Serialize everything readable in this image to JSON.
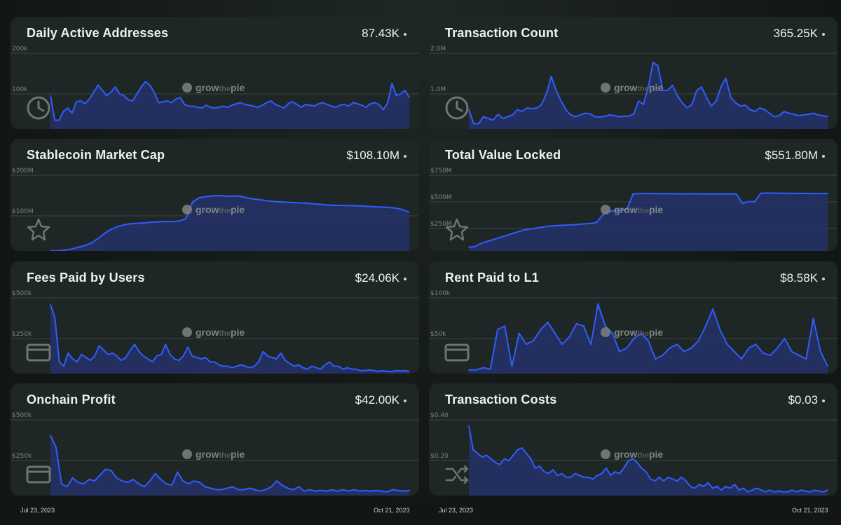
{
  "watermark": {
    "a": "grow",
    "b": "the",
    "c": "pie"
  },
  "dates": {
    "left_start": "Jul 23, 2023",
    "left_end": "Oct 21, 2023",
    "right_start": "Jul 23, 2023",
    "right_end": "Oct 21, 2023"
  },
  "line_color": "#2f5cff",
  "chart_data": [
    {
      "id": "daa",
      "type": "area",
      "title": "Daily Active Addresses",
      "value": "87.43K",
      "icon": "clock-icon",
      "yticks": [
        "200k",
        "100k"
      ],
      "ylim": [
        0,
        230000
      ],
      "values": [
        95000,
        25000,
        25000,
        50000,
        60000,
        45000,
        78000,
        80000,
        72000,
        85000,
        105000,
        125000,
        110000,
        95000,
        105000,
        120000,
        100000,
        95000,
        83000,
        80000,
        100000,
        120000,
        135000,
        125000,
        105000,
        75000,
        78000,
        80000,
        75000,
        85000,
        90000,
        70000,
        65000,
        65000,
        62000,
        60000,
        68000,
        62000,
        60000,
        62000,
        65000,
        62000,
        68000,
        72000,
        75000,
        70000,
        68000,
        65000,
        62000,
        68000,
        75000,
        80000,
        70000,
        65000,
        60000,
        72000,
        78000,
        70000,
        62000,
        70000,
        68000,
        65000,
        72000,
        75000,
        70000,
        65000,
        62000,
        68000,
        70000,
        65000,
        75000,
        72000,
        68000,
        62000,
        72000,
        75000,
        70000,
        55000,
        75000,
        130000,
        95000,
        100000,
        110000,
        90000
      ]
    },
    {
      "id": "tx",
      "type": "area",
      "title": "Transaction Count",
      "value": "365.25K",
      "icon": "clock-icon",
      "yticks": [
        "2.0M",
        "1.0M"
      ],
      "ylim": [
        0,
        2300000
      ],
      "values": [
        550000,
        150000,
        150000,
        350000,
        300000,
        250000,
        420000,
        300000,
        350000,
        400000,
        550000,
        500000,
        600000,
        580000,
        600000,
        700000,
        1000000,
        1500000,
        1100000,
        800000,
        550000,
        400000,
        350000,
        400000,
        450000,
        430000,
        350000,
        340000,
        360000,
        400000,
        380000,
        350000,
        360000,
        370000,
        420000,
        800000,
        700000,
        1200000,
        1900000,
        1800000,
        1100000,
        1100000,
        1250000,
        950000,
        750000,
        600000,
        700000,
        1100000,
        1200000,
        900000,
        650000,
        800000,
        1200000,
        1450000,
        900000,
        750000,
        650000,
        680000,
        550000,
        500000,
        600000,
        550000,
        450000,
        350000,
        380000,
        500000,
        450000,
        420000,
        380000,
        400000,
        420000,
        450000,
        400000,
        380000,
        350000
      ]
    },
    {
      "id": "stable",
      "type": "area",
      "title": "Stablecoin Market Cap",
      "value": "$108.10M",
      "icon": "star-icon",
      "yticks": [
        "$200M",
        "$100M"
      ],
      "ylim": [
        0,
        230000000
      ],
      "values": [
        0,
        0,
        2000000,
        5000000,
        10000000,
        15000000,
        22000000,
        35000000,
        50000000,
        62000000,
        70000000,
        75000000,
        78000000,
        79000000,
        80000000,
        82000000,
        83000000,
        84000000,
        84000000,
        85000000,
        92000000,
        140000000,
        152000000,
        155000000,
        157000000,
        158000000,
        156000000,
        157000000,
        156000000,
        152000000,
        148000000,
        146000000,
        143000000,
        141000000,
        140000000,
        139000000,
        138000000,
        137000000,
        136000000,
        134000000,
        133000000,
        131000000,
        130000000,
        130000000,
        129000000,
        129000000,
        128000000,
        127000000,
        126000000,
        125000000,
        124000000,
        122000000,
        118000000,
        110000000
      ]
    },
    {
      "id": "tvl",
      "type": "area",
      "title": "Total Value Locked",
      "value": "$551.80M",
      "icon": "star-icon",
      "yticks": [
        "$750M",
        "$500M",
        "$250M"
      ],
      "ylim": [
        0,
        850000000
      ],
      "values": [
        40000000,
        45000000,
        80000000,
        100000000,
        120000000,
        140000000,
        160000000,
        180000000,
        200000000,
        220000000,
        230000000,
        240000000,
        250000000,
        260000000,
        265000000,
        270000000,
        272000000,
        275000000,
        280000000,
        285000000,
        290000000,
        300000000,
        380000000,
        420000000,
        425000000,
        430000000,
        440000000,
        600000000,
        605000000,
        606000000,
        604000000,
        605000000,
        603000000,
        604000000,
        602000000,
        603000000,
        600000000,
        604000000,
        602000000,
        600000000,
        601000000,
        600000000,
        602000000,
        600000000,
        600000000,
        500000000,
        520000000,
        520000000,
        608000000,
        610000000,
        610000000,
        609000000,
        607000000,
        608000000,
        606000000,
        607000000,
        605000000,
        606000000,
        605000000,
        606000000
      ]
    },
    {
      "id": "fees",
      "type": "area",
      "title": "Fees Paid by Users",
      "value": "$24.06K",
      "icon": "card-icon",
      "yticks": [
        "$500k",
        "$250k"
      ],
      "ylim": [
        0,
        550000
      ],
      "values": [
        470000,
        380000,
        80000,
        50000,
        140000,
        100000,
        80000,
        130000,
        110000,
        90000,
        120000,
        190000,
        160000,
        130000,
        140000,
        120000,
        90000,
        110000,
        160000,
        200000,
        150000,
        120000,
        100000,
        80000,
        120000,
        130000,
        200000,
        130000,
        100000,
        90000,
        120000,
        180000,
        120000,
        110000,
        100000,
        110000,
        80000,
        80000,
        60000,
        50000,
        50000,
        40000,
        50000,
        60000,
        50000,
        40000,
        50000,
        80000,
        150000,
        120000,
        110000,
        100000,
        140000,
        90000,
        70000,
        50000,
        60000,
        40000,
        30000,
        50000,
        40000,
        30000,
        60000,
        80000,
        50000,
        50000,
        30000,
        40000,
        30000,
        30000,
        20000,
        20000,
        25000,
        20000,
        15000,
        20000,
        15000,
        15000,
        20000,
        18000,
        20000,
        15000
      ]
    },
    {
      "id": "rent",
      "type": "area",
      "title": "Rent Paid to L1",
      "value": "$8.58K",
      "icon": "card-icon",
      "yticks": [
        "$100k",
        "$50k"
      ],
      "ylim": [
        0,
        110000
      ],
      "values": [
        5000,
        5000,
        8000,
        6000,
        60000,
        65000,
        10000,
        55000,
        40000,
        45000,
        60000,
        70000,
        55000,
        40000,
        50000,
        68000,
        65000,
        40000,
        95000,
        65000,
        55000,
        30000,
        35000,
        48000,
        55000,
        45000,
        20000,
        25000,
        35000,
        40000,
        30000,
        35000,
        45000,
        65000,
        88000,
        60000,
        40000,
        30000,
        20000,
        35000,
        40000,
        28000,
        25000,
        35000,
        48000,
        30000,
        25000,
        20000,
        75000,
        30000,
        10000
      ]
    },
    {
      "id": "profit",
      "type": "area",
      "title": "Onchain Profit",
      "value": "$42.00K",
      "icon": "card-icon",
      "yticks": [
        "$500k",
        "$250k"
      ],
      "ylim": [
        0,
        550000
      ],
      "values": [
        410000,
        330000,
        80000,
        60000,
        120000,
        90000,
        80000,
        110000,
        100000,
        140000,
        180000,
        170000,
        120000,
        100000,
        90000,
        110000,
        80000,
        60000,
        100000,
        150000,
        110000,
        80000,
        70000,
        160000,
        100000,
        80000,
        100000,
        90000,
        60000,
        50000,
        40000,
        40000,
        50000,
        60000,
        40000,
        40000,
        50000,
        40000,
        30000,
        40000,
        60000,
        100000,
        70000,
        50000,
        40000,
        60000,
        30000,
        40000,
        30000,
        35000,
        30000,
        40000,
        30000,
        40000,
        30000,
        40000,
        30000,
        35000,
        30000,
        35000,
        30000,
        25000,
        40000,
        35000,
        30000,
        35000
      ]
    },
    {
      "id": "txcost",
      "type": "area",
      "title": "Transaction Costs",
      "value": "$0.03",
      "icon": "shuffle-icon",
      "yticks": [
        "$0.40",
        "$0.20"
      ],
      "ylim": [
        0,
        0.44
      ],
      "values": [
        0.38,
        0.25,
        0.23,
        0.21,
        0.22,
        0.2,
        0.18,
        0.17,
        0.2,
        0.19,
        0.22,
        0.25,
        0.26,
        0.23,
        0.2,
        0.15,
        0.16,
        0.13,
        0.12,
        0.14,
        0.11,
        0.12,
        0.1,
        0.1,
        0.12,
        0.11,
        0.1,
        0.1,
        0.09,
        0.11,
        0.12,
        0.15,
        0.11,
        0.13,
        0.12,
        0.15,
        0.19,
        0.2,
        0.18,
        0.15,
        0.13,
        0.09,
        0.08,
        0.1,
        0.08,
        0.1,
        0.09,
        0.08,
        0.1,
        0.08,
        0.05,
        0.04,
        0.06,
        0.05,
        0.07,
        0.04,
        0.05,
        0.03,
        0.05,
        0.04,
        0.06,
        0.03,
        0.04,
        0.02,
        0.03,
        0.04,
        0.03,
        0.02,
        0.03,
        0.02,
        0.025,
        0.02,
        0.02,
        0.03,
        0.02,
        0.03,
        0.025,
        0.02,
        0.03,
        0.025,
        0.02,
        0.03
      ]
    }
  ]
}
